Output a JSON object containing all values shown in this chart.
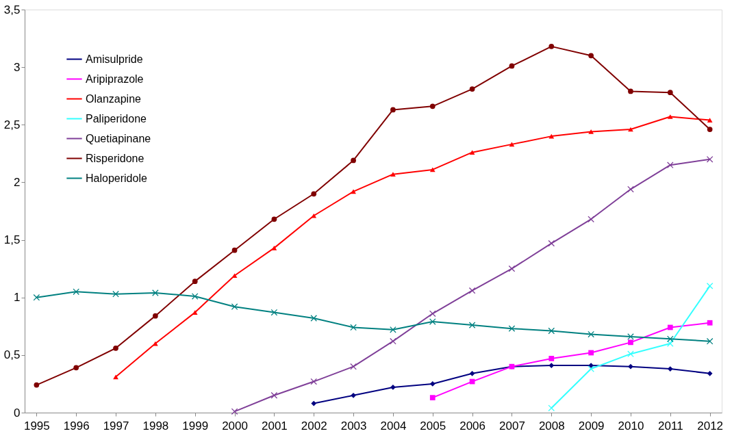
{
  "chart_data": {
    "type": "line",
    "categories": [
      "1995",
      "1996",
      "1997",
      "1998",
      "1999",
      "2000",
      "2001",
      "2002",
      "2003",
      "2004",
      "2005",
      "2006",
      "2007",
      "2008",
      "2009",
      "2010",
      "2011",
      "2012"
    ],
    "ylim": [
      0,
      3.5
    ],
    "yticks": [
      0,
      {
        "value": 0.5,
        "label": "0,5"
      },
      1,
      {
        "value": 1.5,
        "label": "1,5"
      },
      2,
      {
        "value": 2.5,
        "label": "2,5"
      },
      3,
      {
        "value": 3.5,
        "label": "3,5"
      }
    ],
    "grid": false,
    "legend": "top left",
    "line_style": "solid",
    "series": [
      {
        "name": "Amisulpride",
        "color": "#000080",
        "marker": "diamond",
        "values": [
          null,
          null,
          null,
          null,
          null,
          null,
          null,
          0.08,
          0.15,
          0.22,
          0.25,
          0.34,
          0.4,
          0.41,
          0.41,
          0.4,
          0.38,
          0.34
        ]
      },
      {
        "name": "Aripiprazole",
        "color": "#ff00ff",
        "marker": "square",
        "values": [
          null,
          null,
          null,
          null,
          null,
          null,
          null,
          null,
          null,
          null,
          0.13,
          0.27,
          0.4,
          0.47,
          0.52,
          0.61,
          0.74,
          0.78
        ]
      },
      {
        "name": "Olanzapine",
        "color": "#ff0000",
        "marker": "triangle",
        "values": [
          null,
          null,
          0.31,
          0.6,
          0.87,
          1.19,
          1.43,
          1.71,
          1.92,
          2.07,
          2.11,
          2.26,
          2.33,
          2.4,
          2.44,
          2.46,
          2.57,
          2.54
        ]
      },
      {
        "name": "Paliperidone",
        "color": "#33ffff",
        "marker": "cross",
        "values": [
          null,
          null,
          null,
          null,
          null,
          null,
          null,
          null,
          null,
          null,
          null,
          null,
          null,
          0.04,
          0.38,
          0.51,
          0.6,
          1.1
        ]
      },
      {
        "name": "Quetiapinane",
        "color": "#7f3f98",
        "marker": "cross",
        "values": [
          null,
          null,
          null,
          null,
          null,
          0.01,
          0.15,
          0.27,
          0.4,
          0.62,
          0.86,
          1.06,
          1.25,
          1.47,
          1.68,
          1.94,
          2.15,
          2.2
        ]
      },
      {
        "name": "Risperidone",
        "color": "#800000",
        "marker": "circle",
        "values": [
          0.24,
          0.39,
          0.56,
          0.84,
          1.14,
          1.41,
          1.68,
          1.9,
          2.19,
          2.63,
          2.66,
          2.81,
          3.01,
          3.18,
          3.1,
          2.79,
          2.78,
          2.46
        ]
      },
      {
        "name": "Haloperidole",
        "color": "#008080",
        "marker": "cross",
        "values": [
          1.0,
          1.05,
          1.03,
          1.04,
          1.01,
          0.92,
          0.87,
          0.82,
          0.74,
          0.72,
          0.79,
          0.76,
          0.73,
          0.71,
          0.68,
          0.66,
          0.64,
          0.62
        ]
      }
    ]
  }
}
